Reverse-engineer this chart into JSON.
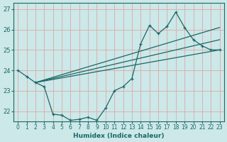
{
  "xlabel": "Humidex (Indice chaleur)",
  "bg_color": "#cce8e8",
  "grid_color": "#dda8a8",
  "line_color": "#1a6868",
  "xlim": [
    -0.5,
    23.5
  ],
  "ylim": [
    21.5,
    27.3
  ],
  "yticks": [
    22,
    23,
    24,
    25,
    26,
    27
  ],
  "xticks": [
    0,
    1,
    2,
    3,
    4,
    5,
    6,
    7,
    8,
    9,
    10,
    11,
    12,
    13,
    14,
    15,
    16,
    17,
    18,
    19,
    20,
    21,
    22,
    23
  ],
  "main_x": [
    0,
    1,
    2,
    3,
    4,
    5,
    6,
    7,
    8,
    9,
    10,
    11,
    12,
    13,
    14,
    15,
    16,
    17,
    18,
    19,
    20,
    21,
    22,
    23
  ],
  "main_y": [
    24.0,
    23.7,
    23.4,
    23.2,
    21.85,
    21.8,
    21.55,
    21.6,
    21.7,
    21.55,
    22.15,
    23.0,
    23.2,
    23.6,
    25.3,
    26.2,
    25.8,
    26.15,
    26.85,
    26.1,
    25.5,
    25.2,
    25.0,
    25.0
  ],
  "line1_x": [
    2,
    23
  ],
  "line1_y": [
    23.4,
    25.0
  ],
  "line2_x": [
    2,
    23
  ],
  "line2_y": [
    23.4,
    25.5
  ],
  "line3_x": [
    2,
    23
  ],
  "line3_y": [
    23.4,
    26.1
  ]
}
